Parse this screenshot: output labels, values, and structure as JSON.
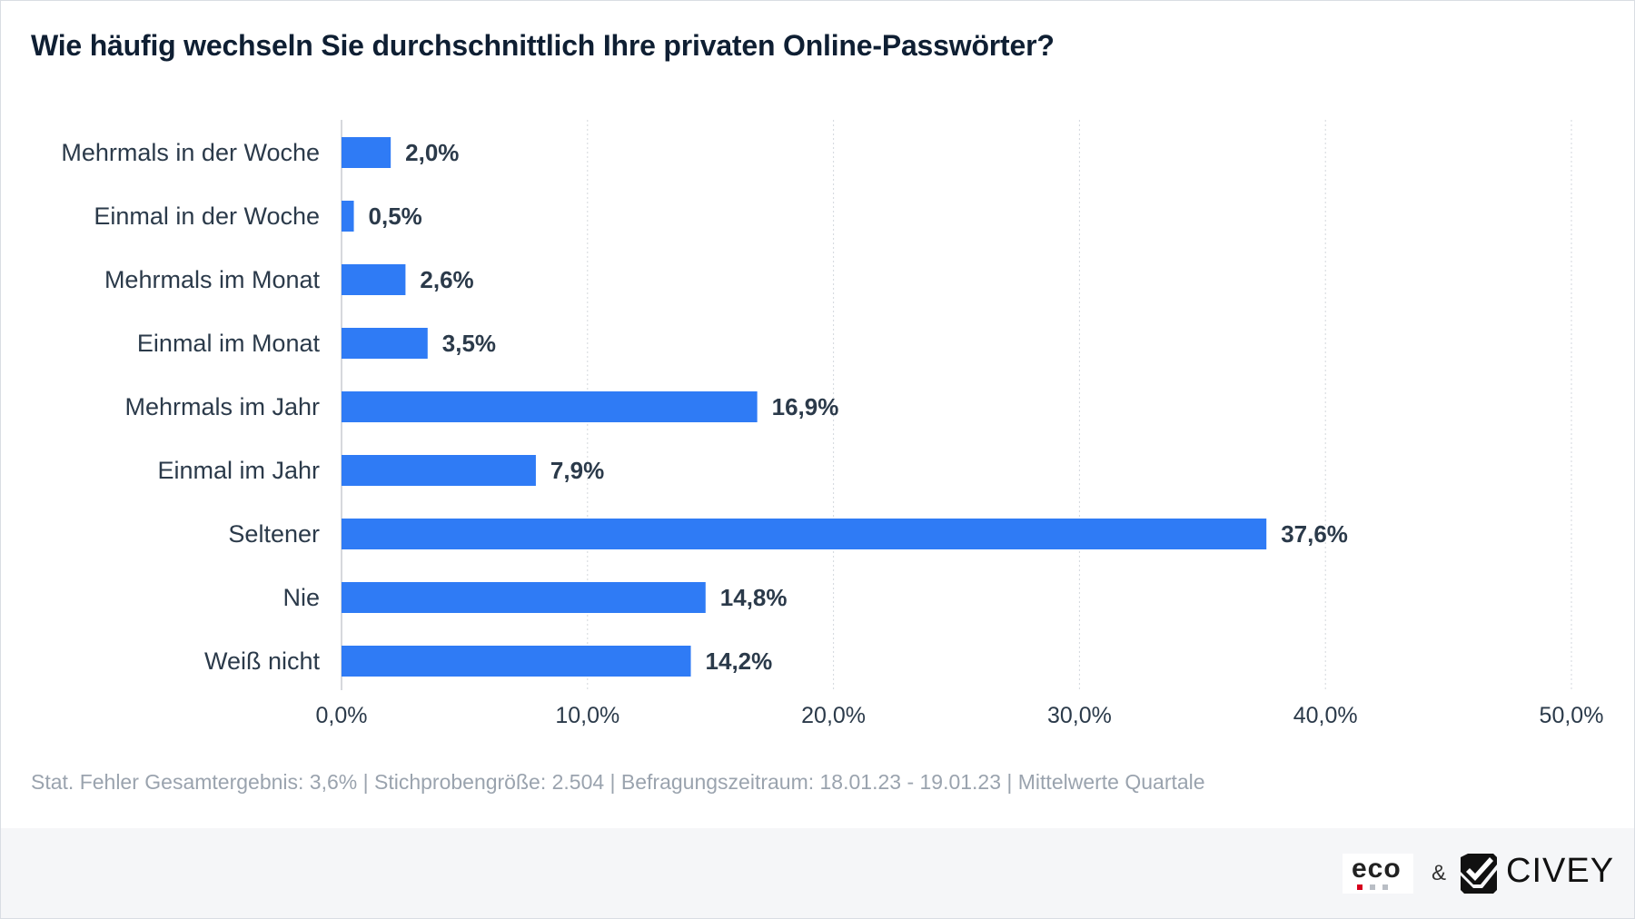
{
  "footnote": "Stat. Fehler Gesamtergebnis: 3,6% | Stichprobengröße: 2.504 | Befragungszeitraum: 18.01.23 - 19.01.23 | Mittelwerte Quartale",
  "logos": {
    "eco": "eco",
    "ampersand": "&",
    "civey": "CIVEY"
  },
  "colors": {
    "bar": "#2f7bf5",
    "grid": "#d3d7dc",
    "axis": "#c8ccd2",
    "label": "#2b3a4a",
    "value": "#2b3a4a"
  },
  "chart_data": {
    "type": "bar",
    "orientation": "horizontal",
    "title": "Wie häufig wechseln Sie durchschnittlich Ihre privaten Online-Passwörter?",
    "categories": [
      "Mehrmals in der Woche",
      "Einmal in der Woche",
      "Mehrmals im Monat",
      "Einmal im Monat",
      "Mehrmals im Jahr",
      "Einmal im Jahr",
      "Seltener",
      "Nie",
      "Weiß nicht"
    ],
    "values": [
      2.0,
      0.5,
      2.6,
      3.5,
      16.9,
      7.9,
      37.6,
      14.8,
      14.2
    ],
    "value_labels": [
      "2,0%",
      "0,5%",
      "2,6%",
      "3,5%",
      "16,9%",
      "7,9%",
      "37,6%",
      "14,8%",
      "14,2%"
    ],
    "xlim": [
      0,
      50
    ],
    "xticks": [
      0,
      10,
      20,
      30,
      40,
      50
    ],
    "xtick_labels": [
      "0,0%",
      "10,0%",
      "20,0%",
      "30,0%",
      "40,0%",
      "50,0%"
    ],
    "grid": true,
    "legend": "none"
  }
}
